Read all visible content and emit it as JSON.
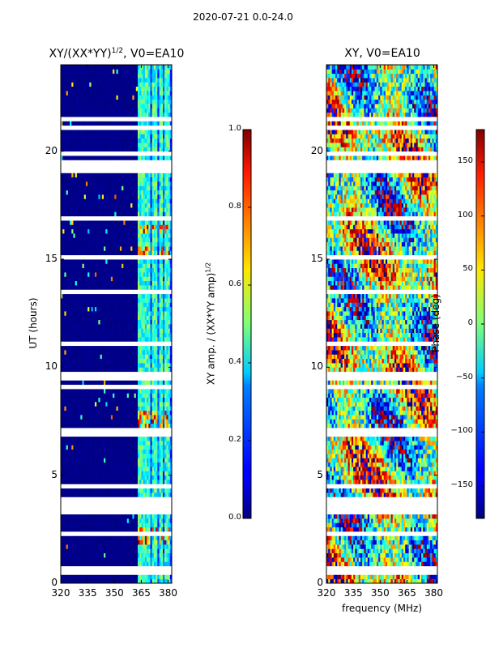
{
  "chart_data": [
    {
      "type": "heatmap",
      "title": "XY/(XX*YY)^1/2, V0=EA10",
      "title_base": "XY/(XX*YY)",
      "title_exp": "1/2",
      "title_tail": ", V0=EA10",
      "xlabel": "",
      "ylabel": "UT (hours)",
      "xlim": [
        320,
        382
      ],
      "ylim": [
        0,
        24
      ],
      "xticks": [
        "320",
        "335",
        "350",
        "365",
        "380"
      ],
      "yticks": [
        "0",
        "5",
        "10",
        "15",
        "20"
      ],
      "colorbar": {
        "label_base": "XY amp. / (XX*YY amp)",
        "label_exp": "1/2",
        "range": [
          0.0,
          1.0
        ],
        "ticks": [
          "0.0",
          "0.2",
          "0.4",
          "0.6",
          "0.8",
          "1.0"
        ]
      },
      "description": "amplitude mostly low (dark blue) below ~363 MHz, higher (cyan/green) bands between ~363 and ~382 MHz, with white gaps of missing data"
    },
    {
      "type": "heatmap",
      "title": "XY, V0=EA10",
      "xlabel": "frequency (MHz)",
      "ylabel": "",
      "xlim": [
        320,
        382
      ],
      "ylim": [
        0,
        24
      ],
      "xticks": [
        "320",
        "335",
        "350",
        "365",
        "380"
      ],
      "yticks": [
        "0",
        "5",
        "10",
        "15",
        "20"
      ],
      "colorbar": {
        "label": "Phase (deg)",
        "range": [
          -180,
          180
        ],
        "ticks": [
          "-150",
          "-100",
          "-50",
          "0",
          "50",
          "100",
          "150"
        ]
      }
    }
  ],
  "suptitle": "2020-07-21 0.0-24.0",
  "colors": {
    "background": "#ffffff",
    "frame": "#000000"
  },
  "gaps_hours": [
    [
      3.3,
      3.9
    ],
    [
      0.55,
      0.75
    ],
    [
      9.0,
      9.2
    ],
    [
      9.45,
      9.6
    ],
    [
      19.05,
      19.3
    ],
    [
      11.0,
      11.15
    ],
    [
      15.0,
      15.15
    ],
    [
      7.0,
      7.1
    ],
    [
      13.5,
      13.55
    ],
    [
      16.8,
      16.9
    ]
  ],
  "amp_bands_mhz": [
    [
      363,
      365.5
    ],
    [
      366,
      368.5
    ],
    [
      369,
      370
    ],
    [
      371.5,
      374
    ],
    [
      375,
      377
    ],
    [
      378,
      381
    ]
  ],
  "bright_events_hours": [
    [
      1.9,
      2.6
    ],
    [
      7.3,
      8.0
    ],
    [
      16.2,
      16.5
    ],
    [
      15.0,
      15.5
    ]
  ]
}
